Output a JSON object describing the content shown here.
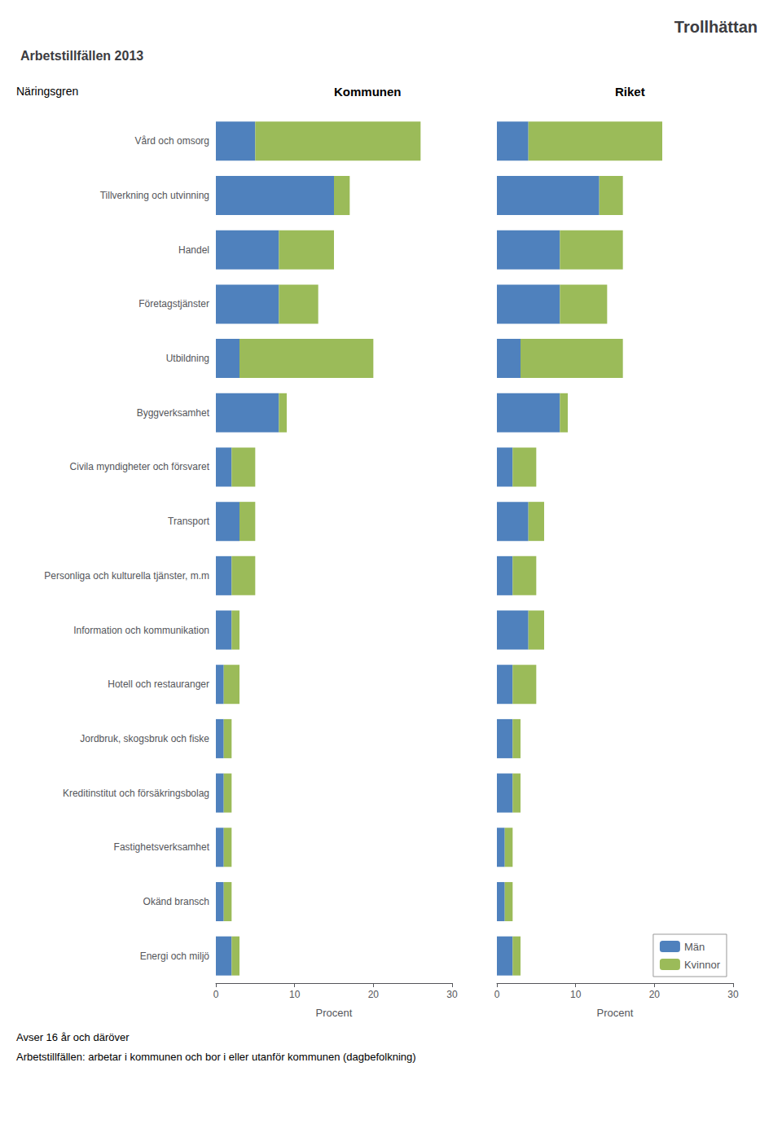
{
  "title": "Trollhättan",
  "subtitle": "Arbetstillfällen 2013",
  "annotations": [
    "Avser 16 år och däröver",
    "Arbetstillfällen: arbetar i kommunen och bor i eller utanför kommunen (dagbefolkning)"
  ],
  "chart_data": [
    {
      "type": "bar",
      "title": "Kommunen",
      "orientation": "horizontal",
      "stacked": true,
      "grid": false,
      "xlabel": "Procent",
      "ylabel": "Näringsgren",
      "categories": [
        "Vård och omsorg",
        "Tillverkning och utvinning",
        "Handel",
        "Företagstjänster",
        "Utbildning",
        "Byggverksamhet",
        "Civila myndigheter och försvaret",
        "Transport",
        "Personliga och kulturella tjänster, m.m",
        "Information och kommunikation",
        "Hotell och restauranger",
        "Jordbruk, skogsbruk och fiske",
        "Kreditinstitut och försäkringsbolag",
        "Fastighetsverksamhet",
        "Okänd bransch",
        "Energi och miljö"
      ],
      "series": [
        {
          "name": "Män",
          "color": "#4f81bd",
          "values": [
            5,
            15,
            8,
            8,
            3,
            8,
            2,
            3,
            2,
            2,
            1,
            1,
            1,
            1,
            1,
            2
          ]
        },
        {
          "name": "Kvinnor",
          "color": "#9bbb59",
          "values": [
            21,
            2,
            7,
            5,
            17,
            1,
            3,
            2,
            3,
            1,
            2,
            1,
            1,
            1,
            1,
            1
          ]
        }
      ],
      "xlim": [
        0,
        30
      ],
      "xticks": [
        0,
        10,
        20,
        30
      ]
    },
    {
      "type": "bar",
      "title": "Riket",
      "orientation": "horizontal",
      "stacked": true,
      "grid": false,
      "xlabel": "Procent",
      "tick_labels": "x",
      "legend": "lower right",
      "categories": [
        "Vård och omsorg",
        "Tillverkning och utvinning",
        "Handel",
        "Företagstjänster",
        "Utbildning",
        "Byggverksamhet",
        "Civila myndigheter och försvaret",
        "Transport",
        "Personliga och kulturella tjänster, m.m",
        "Information och kommunikation",
        "Hotell och restauranger",
        "Jordbruk, skogsbruk och fiske",
        "Kreditinstitut och försäkringsbolag",
        "Fastighetsverksamhet",
        "Okänd bransch",
        "Energi och miljö"
      ],
      "series": [
        {
          "name": "Män",
          "color": "#4f81bd",
          "values": [
            4,
            13,
            8,
            8,
            3,
            8,
            2,
            4,
            2,
            4,
            2,
            2,
            2,
            1,
            1,
            2
          ]
        },
        {
          "name": "Kvinnor",
          "color": "#9bbb59",
          "values": [
            17,
            3,
            8,
            6,
            13,
            1,
            3,
            2,
            3,
            2,
            3,
            1,
            1,
            1,
            1,
            1
          ]
        }
      ],
      "xlim": [
        0,
        30
      ],
      "xticks": [
        0,
        10,
        20,
        30
      ]
    }
  ]
}
